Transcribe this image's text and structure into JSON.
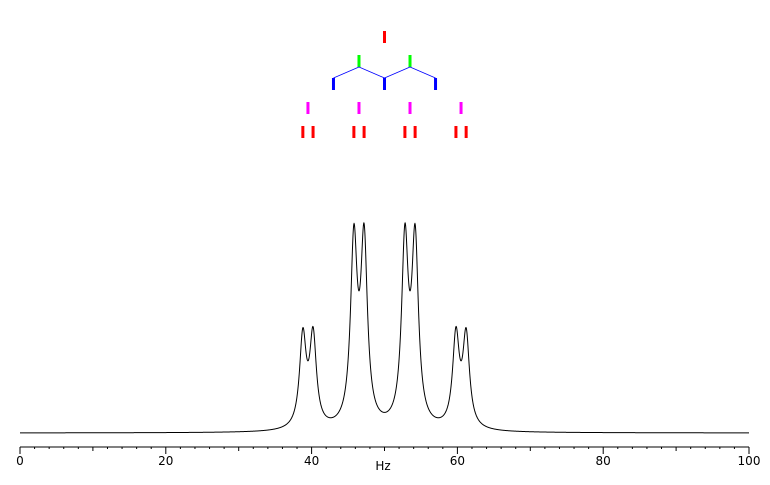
{
  "chart_data": {
    "type": "line",
    "title": "",
    "xlabel": "Hz",
    "ylabel": "",
    "xlim": [
      0,
      100
    ],
    "x_ticks": [
      0,
      20,
      40,
      60,
      80,
      100
    ],
    "x_tick_labels": [
      "0",
      "20",
      "40",
      "60",
      "80",
      "100"
    ],
    "grid": false,
    "line_color": "#000000",
    "spectrum": {
      "description_type": "NMR multiplet (doublet of doublets of doublets)",
      "coupling_constants_hz": [
        14.0,
        7.0,
        1.4
      ],
      "center_hz": 50.0,
      "peak_width_hz": 0.55,
      "peaks": [
        {
          "x": 39.5,
          "height": 0.5,
          "split": [
            38.8,
            40.2
          ]
        },
        {
          "x": 46.5,
          "height": 1.0,
          "split": [
            45.8,
            47.2
          ]
        },
        {
          "x": 53.5,
          "height": 1.0,
          "split": [
            52.8,
            54.2
          ]
        },
        {
          "x": 60.5,
          "height": 0.5,
          "split": [
            59.8,
            61.2
          ]
        }
      ]
    },
    "splitting_tree": {
      "levels": [
        {
          "color": "#ff0000",
          "positions_hz": [
            50.0
          ]
        },
        {
          "color": "#00ff00",
          "positions_hz": [
            46.5,
            53.5
          ]
        },
        {
          "color": "#0000ff",
          "positions_hz": [
            43.0,
            50.0,
            57.0
          ]
        },
        {
          "color": "#ff00ff",
          "positions_hz": [
            39.5,
            46.5,
            53.5,
            60.5
          ]
        },
        {
          "color": "#ff0000",
          "positions_hz": [
            38.8,
            40.2,
            45.8,
            47.2,
            52.8,
            54.2,
            59.8,
            61.2
          ]
        }
      ],
      "connector_colors": [
        "#00ff00",
        "#0000ff",
        "#ff00ff",
        "#ff0000"
      ]
    }
  }
}
